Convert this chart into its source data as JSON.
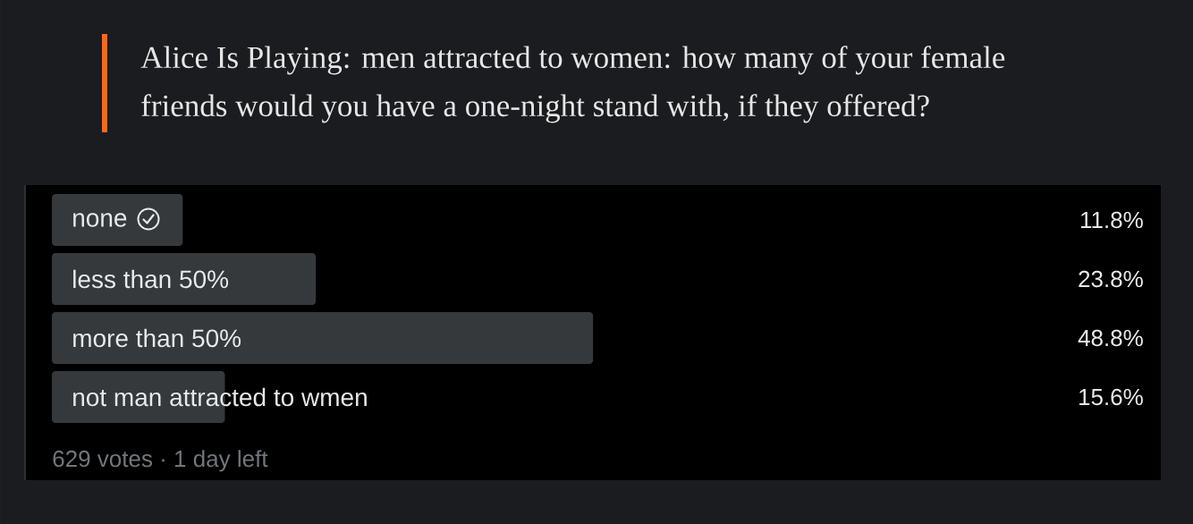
{
  "chart_data": {
    "type": "bar",
    "orientation": "horizontal",
    "title": "Alice Is Playing: men attracted to women: how many of your female friends would you have a one-night stand with, if they offered?",
    "categories": [
      "none",
      "less than 50%",
      "more than 50%",
      "not man attracted to wmen"
    ],
    "values": [
      11.8,
      23.8,
      48.8,
      15.6
    ],
    "value_labels": [
      "11.8%",
      "23.8%",
      "48.8%",
      "15.6%"
    ],
    "color": "#35393c",
    "xlim": [
      0,
      100
    ],
    "tick_labels": "y",
    "annotations": [
      "629 votes · 1 day left"
    ]
  }
}
